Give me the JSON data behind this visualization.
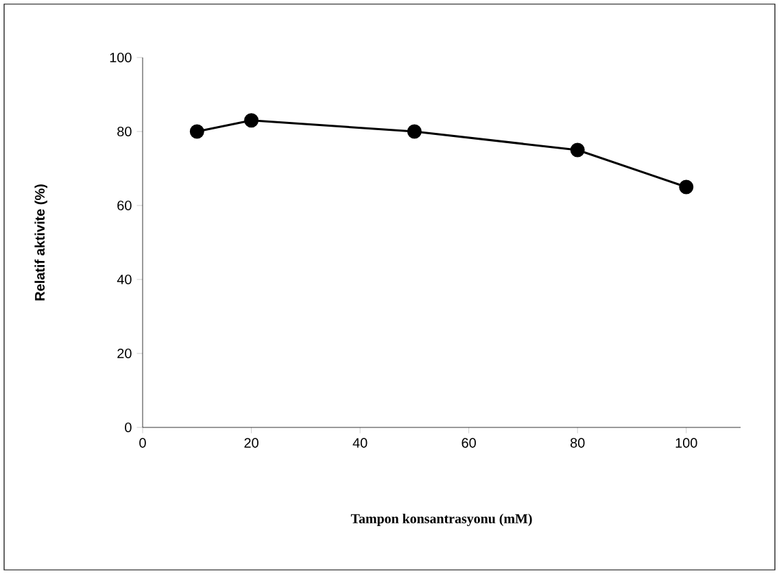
{
  "chart_data": {
    "type": "line",
    "xlabel": "Tampon konsantrasyonu (mM)",
    "ylabel": "Relatif aktivite (%)",
    "x": [
      10,
      20,
      50,
      80,
      100
    ],
    "series": [
      {
        "color": "#000000",
        "values": [
          80,
          83,
          80,
          75,
          65
        ]
      }
    ],
    "xlim": [
      0,
      110
    ],
    "xticks": [
      0,
      20,
      40,
      60,
      80,
      100
    ],
    "ylim": [
      0,
      100
    ],
    "yticks": [
      0,
      20,
      40,
      60,
      80,
      100
    ],
    "marker": "circle",
    "line_style": "solid",
    "grid": false
  }
}
